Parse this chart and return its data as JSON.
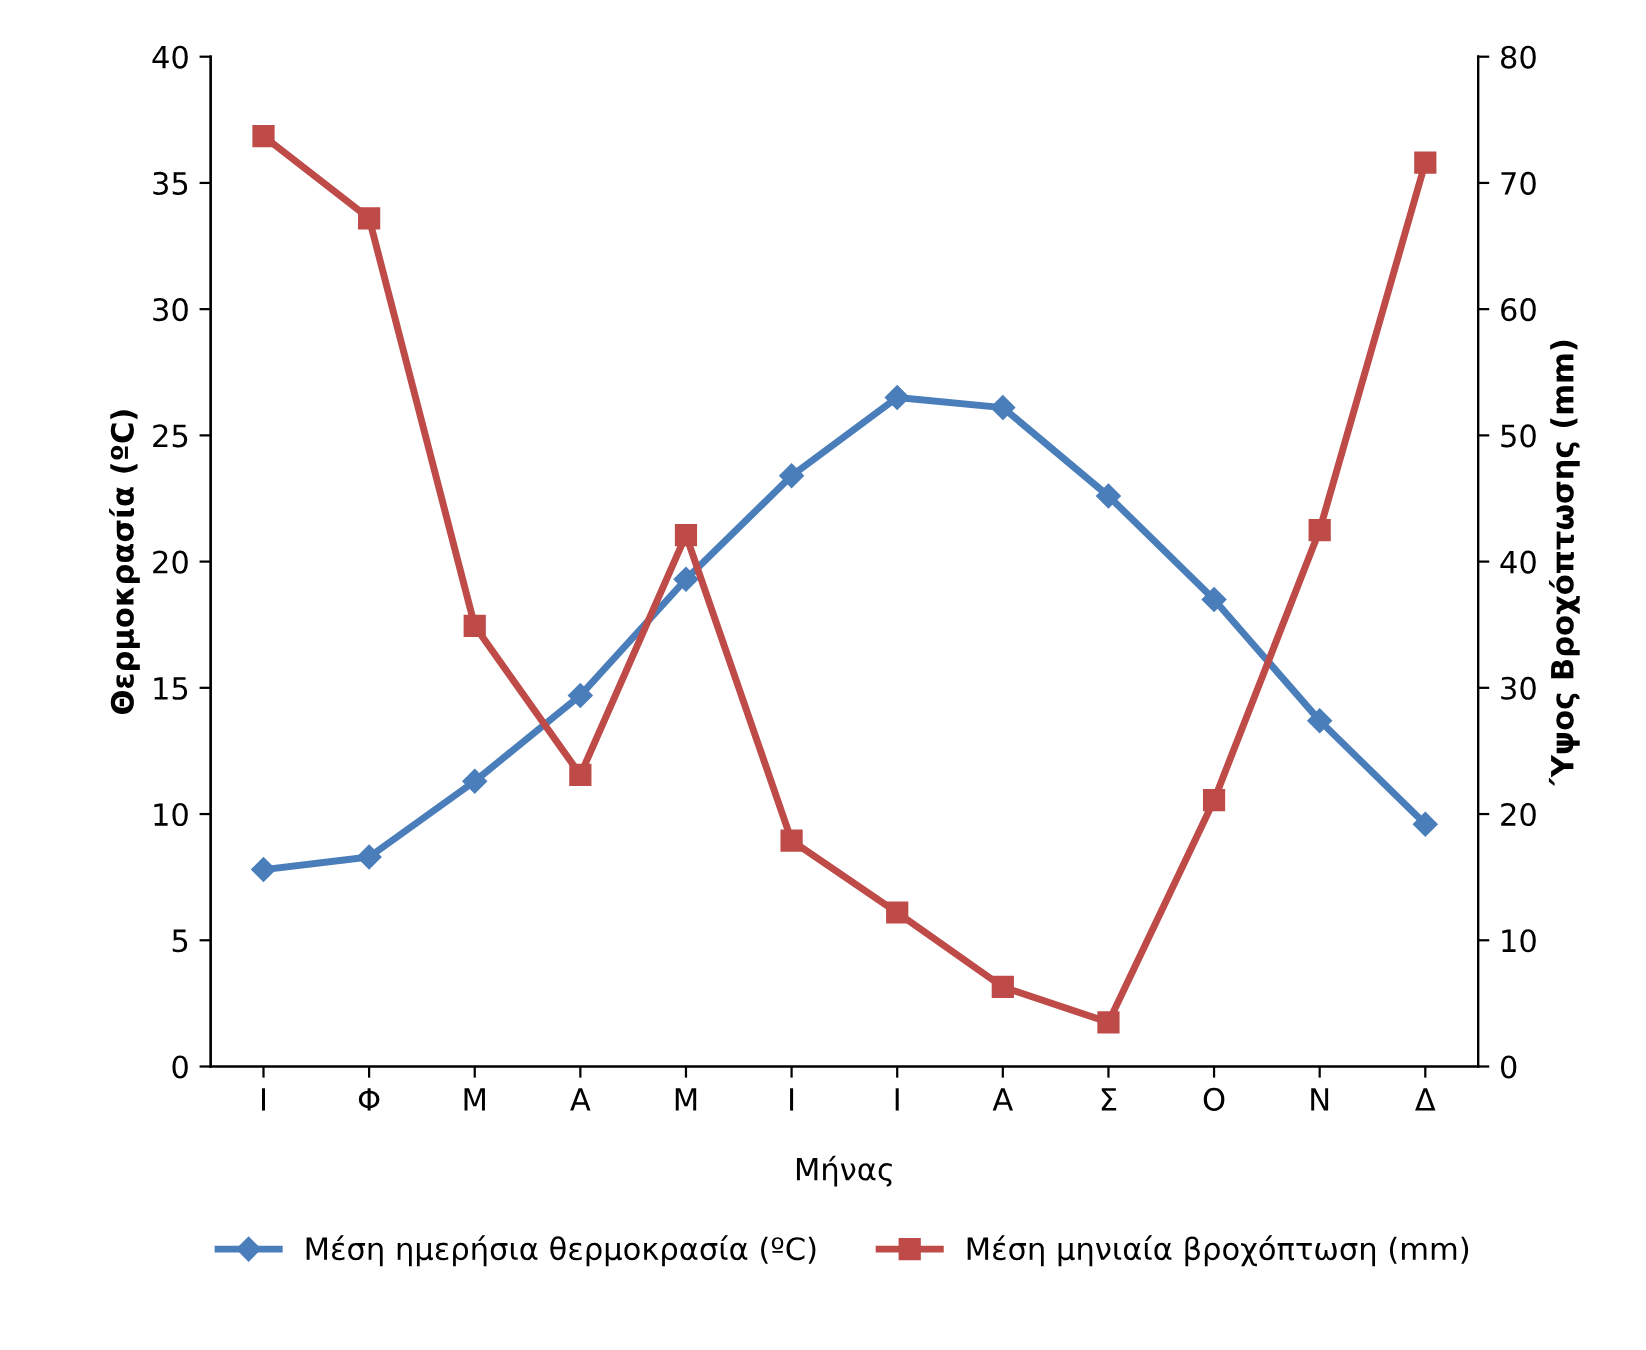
{
  "chart_data": {
    "type": "line",
    "xlabel": "Μήνας",
    "ylabel": "Θερμοκρασία (ºC)",
    "y2label": "Ύψος Βροχόπτωσης (mm)",
    "categories": [
      "Ι",
      "Φ",
      "Μ",
      "Α",
      "Μ",
      "Ι",
      "Ι",
      "Α",
      "Σ",
      "Ο",
      "Ν",
      "Δ"
    ],
    "series": [
      {
        "name": "Μέση ημερήσια θερμοκρασία (ºC)",
        "color": "#4a7ebb",
        "marker": "diamond",
        "values": [
          7.8,
          8.3,
          11.3,
          14.7,
          19.3,
          23.4,
          26.5,
          26.1,
          22.6,
          18.5,
          13.7,
          9.6
        ]
      },
      {
        "name": "Μέση μηνιαία βροχόπτωση (mm)",
        "color": "#be4b48",
        "marker": "square",
        "axis": "y2",
        "values": [
          73.7,
          67.2,
          34.9,
          23.1,
          42.1,
          17.9,
          12.2,
          6.3,
          3.5,
          21.1,
          42.5,
          71.6
        ]
      }
    ],
    "ylim": [
      0,
      40
    ],
    "yticks": [
      0,
      5,
      10,
      15,
      20,
      25,
      30,
      35,
      40
    ],
    "y2lim": [
      0,
      80
    ],
    "y2ticks": [
      0,
      10,
      20,
      30,
      40,
      50,
      60,
      70,
      80
    ],
    "grid": false,
    "legend": "bottom",
    "line_style": "solid"
  }
}
